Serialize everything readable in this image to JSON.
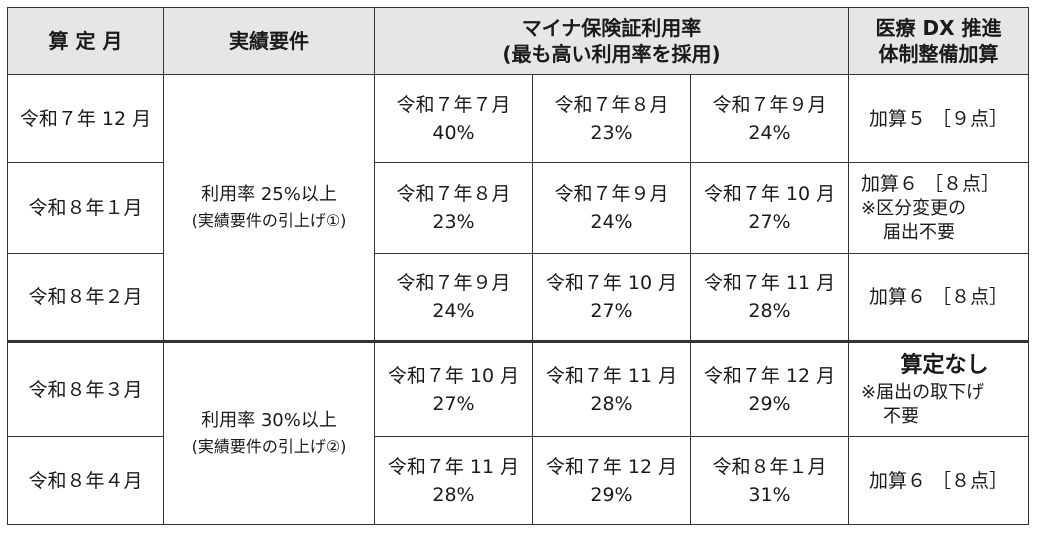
{
  "header": {
    "month": "算 定 月",
    "requirement": "実績要件",
    "rate_line1": "マイナ保険証利用率",
    "rate_line2": "(最も高い利用率を採用)",
    "add_line1": "医療 DX 推進",
    "add_line2": "体制整備加算"
  },
  "requirements": [
    {
      "line1": "利用率 25%以上",
      "line2": "(実績要件の引上げ①)"
    },
    {
      "line1": "利用率 30%以上",
      "line2": "(実績要件の引上げ②)"
    }
  ],
  "rows": [
    {
      "month": "令和７年 12 月",
      "rates": [
        {
          "period": "令和７年７月",
          "value": "40%"
        },
        {
          "period": "令和７年８月",
          "value": "23%"
        },
        {
          "period": "令和７年９月",
          "value": "24%"
        }
      ],
      "add": {
        "main": "加算５ ［９点］"
      }
    },
    {
      "month": "令和８年１月",
      "rates": [
        {
          "period": "令和７年８月",
          "value": "23%"
        },
        {
          "period": "令和７年９月",
          "value": "24%"
        },
        {
          "period": "令和７年 10 月",
          "value": "27%"
        }
      ],
      "add": {
        "main": "加算６ ［８点］",
        "note1": "※区分変更の",
        "note2": "届出不要"
      }
    },
    {
      "month": "令和８年２月",
      "rates": [
        {
          "period": "令和７年９月",
          "value": "24%"
        },
        {
          "period": "令和７年 10 月",
          "value": "27%"
        },
        {
          "period": "令和７年 11 月",
          "value": "28%"
        }
      ],
      "add": {
        "main": "加算６ ［８点］"
      }
    },
    {
      "month": "令和８年３月",
      "rates": [
        {
          "period": "令和７年 10 月",
          "value": "27%"
        },
        {
          "period": "令和７年 11 月",
          "value": "28%"
        },
        {
          "period": "令和７年 12 月",
          "value": "29%"
        }
      ],
      "add": {
        "main": "算定なし",
        "note1": "※届出の取下げ",
        "note2": "不要"
      }
    },
    {
      "month": "令和８年４月",
      "rates": [
        {
          "period": "令和７年 11 月",
          "value": "28%"
        },
        {
          "period": "令和７年 12 月",
          "value": "29%"
        },
        {
          "period": "令和８年１月",
          "value": "31%"
        }
      ],
      "add": {
        "main": "加算６ ［８点］"
      }
    }
  ]
}
